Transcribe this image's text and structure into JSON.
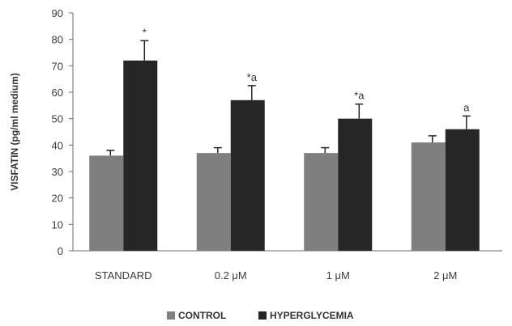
{
  "chart_data": {
    "type": "bar",
    "ylabel": "VISFATIN (pg/ml medium)",
    "ylim": [
      0,
      90
    ],
    "yticks": [
      "0",
      "10",
      "20",
      "30",
      "40",
      "50",
      "60",
      "70",
      "80",
      "90"
    ],
    "categories": [
      "STANDARD",
      "0.2 μM",
      "1 μM",
      "2 μM"
    ],
    "series": [
      {
        "name": "CONTROL",
        "color": "#7f7f7f",
        "values": [
          36,
          37,
          37,
          41
        ],
        "errors": [
          2,
          2,
          2,
          2.5
        ],
        "annotations": [
          "",
          "",
          "",
          ""
        ]
      },
      {
        "name": "HYPERGLYCEMIA",
        "color": "#262626",
        "values": [
          72,
          57,
          50,
          46
        ],
        "errors": [
          7.5,
          5.5,
          5.5,
          5
        ],
        "annotations": [
          "*",
          "*a",
          "*a",
          "a"
        ]
      }
    ],
    "grid": false,
    "legend_position": "bottom"
  }
}
